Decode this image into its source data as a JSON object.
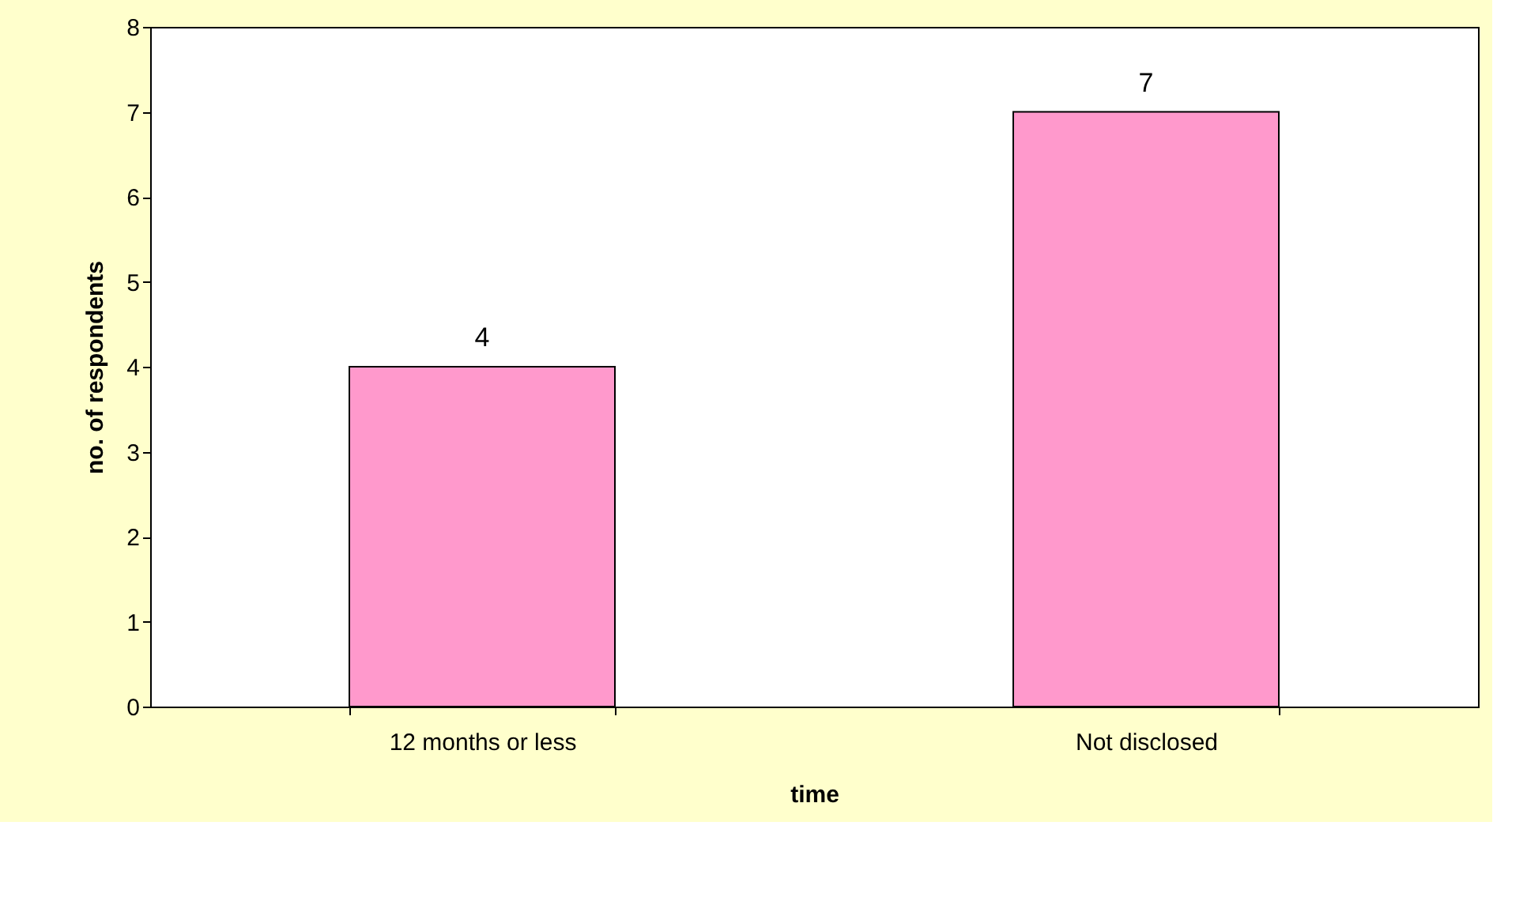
{
  "chart_data": {
    "type": "bar",
    "xlabel": "time",
    "ylabel": "no. of respondents",
    "categories": [
      "12 months or less",
      "Not disclosed"
    ],
    "values": [
      4,
      7
    ],
    "color": "#ff99cc",
    "ylim": [
      0,
      8
    ],
    "yticks": [
      0,
      1,
      2,
      3,
      4,
      5,
      6,
      7,
      8
    ],
    "data_labels": true
  }
}
